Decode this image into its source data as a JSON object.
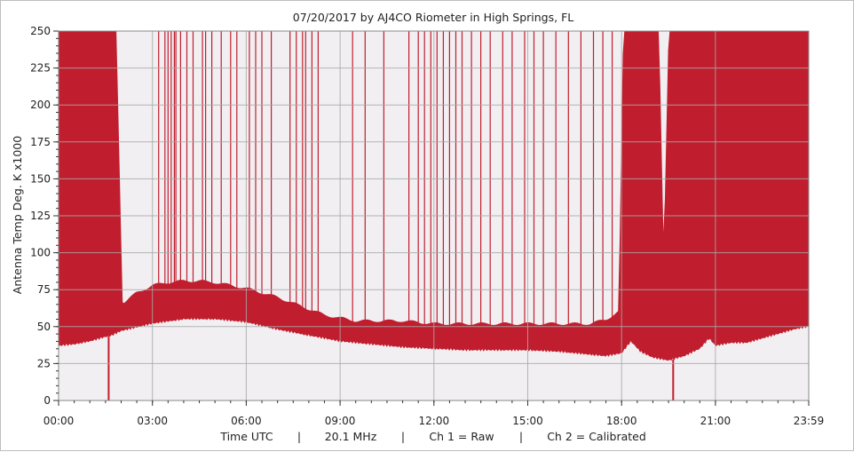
{
  "chart_data": {
    "type": "area",
    "title": "07/20/2017  by  AJ4CO Riometer  in  High Springs, FL",
    "ylabel": "Antenna Temp Deg. K x1000",
    "xlabel": "",
    "ylim": [
      0,
      250
    ],
    "xlim": [
      0,
      23.983
    ],
    "grid": true,
    "y_ticks": [
      "0",
      "25",
      "50",
      "75",
      "100",
      "125",
      "150",
      "175",
      "200",
      "225",
      "250"
    ],
    "x_ticks": [
      {
        "label": "00:00",
        "hour": 0
      },
      {
        "label": "03:00",
        "hour": 3
      },
      {
        "label": "06:00",
        "hour": 6
      },
      {
        "label": "09:00",
        "hour": 9
      },
      {
        "label": "12:00",
        "hour": 12
      },
      {
        "label": "15:00",
        "hour": 15
      },
      {
        "label": "18:00",
        "hour": 18
      },
      {
        "label": "21:00",
        "hour": 21
      },
      {
        "label": "23:59",
        "hour": 23.983
      }
    ],
    "footer": [
      "Time UTC",
      "|",
      "20.1 MHz",
      "|",
      "Ch 1 = Raw",
      "|",
      "Ch 2 = Calibrated"
    ],
    "series": [
      {
        "name": "Ch 1 = Raw",
        "color": "#c01e2e",
        "lower": [
          [
            0,
            37
          ],
          [
            0.5,
            38
          ],
          [
            1,
            40
          ],
          [
            1.5,
            43
          ],
          [
            1.7,
            44
          ],
          [
            2,
            47
          ],
          [
            3,
            52
          ],
          [
            4,
            55
          ],
          [
            5,
            55
          ],
          [
            6,
            53
          ],
          [
            7,
            48
          ],
          [
            8,
            44
          ],
          [
            9,
            40
          ],
          [
            10,
            38
          ],
          [
            11,
            36
          ],
          [
            12,
            35
          ],
          [
            13,
            34
          ],
          [
            14,
            34
          ],
          [
            15,
            34
          ],
          [
            16,
            33
          ],
          [
            17,
            31
          ],
          [
            17.5,
            30
          ],
          [
            18,
            32
          ],
          [
            18.3,
            40
          ],
          [
            18.6,
            33
          ],
          [
            19,
            29
          ],
          [
            19.5,
            27
          ],
          [
            20,
            30
          ],
          [
            20.5,
            35
          ],
          [
            20.8,
            42
          ],
          [
            21,
            37
          ],
          [
            21.5,
            39
          ],
          [
            22,
            39
          ],
          [
            22.5,
            42
          ],
          [
            23,
            45
          ],
          [
            23.5,
            48
          ],
          [
            23.98,
            50
          ]
        ],
        "upper": [
          [
            0,
            250
          ],
          [
            1.85,
            250
          ],
          [
            2.05,
            66
          ],
          [
            2.5,
            73
          ],
          [
            3,
            78
          ],
          [
            3.5,
            80
          ],
          [
            4,
            81
          ],
          [
            4.5,
            81
          ],
          [
            5,
            80
          ],
          [
            5.5,
            78
          ],
          [
            6,
            76
          ],
          [
            6.5,
            73
          ],
          [
            7,
            70
          ],
          [
            7.5,
            66
          ],
          [
            8,
            62
          ],
          [
            8.5,
            58
          ],
          [
            9,
            56
          ],
          [
            9.5,
            54
          ],
          [
            10,
            54
          ],
          [
            10.5,
            54
          ],
          [
            11,
            54
          ],
          [
            11.5,
            53
          ],
          [
            12,
            52
          ],
          [
            12.5,
            52
          ],
          [
            13,
            52
          ],
          [
            13.5,
            52
          ],
          [
            14,
            52
          ],
          [
            14.5,
            52
          ],
          [
            15,
            52
          ],
          [
            15.5,
            52
          ],
          [
            16,
            52
          ],
          [
            16.5,
            52
          ],
          [
            17,
            52
          ],
          [
            17.5,
            55
          ],
          [
            17.9,
            60
          ],
          [
            18.05,
            250
          ],
          [
            19.2,
            250
          ],
          [
            19.35,
            100
          ],
          [
            19.5,
            250
          ],
          [
            23.98,
            250
          ]
        ],
        "spikes": [
          0.5,
          0.7,
          1.3,
          3.2,
          3.4,
          3.5,
          3.6,
          3.7,
          3.75,
          3.9,
          4.1,
          4.3,
          4.6,
          4.7,
          4.9,
          5.2,
          5.5,
          5.7,
          6.1,
          6.3,
          6.5,
          6.8,
          7.4,
          7.6,
          7.8,
          7.9,
          8.1,
          8.3,
          9.4,
          9.8,
          10.4,
          11.2,
          11.5,
          11.7,
          11.9,
          12.1,
          12.3,
          12.5,
          12.7,
          12.9,
          13.2,
          13.5,
          13.8,
          14.2,
          14.5,
          14.9,
          15.2,
          15.5,
          15.9,
          16.3,
          16.7,
          17.1,
          17.4,
          17.7
        ],
        "dips": [
          1.6,
          19.65
        ]
      }
    ]
  }
}
